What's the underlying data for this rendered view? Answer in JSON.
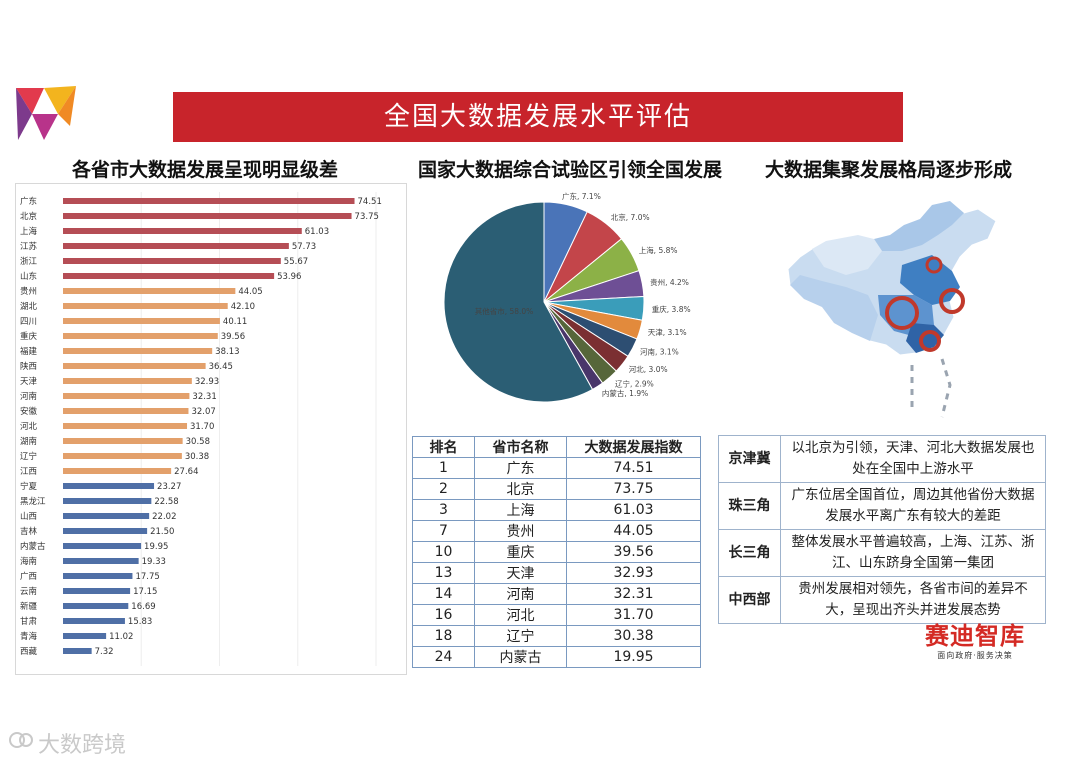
{
  "title": "全国大数据发展水平评估",
  "col_titles": {
    "left": "各省市大数据发展呈现明显级差",
    "mid": "国家大数据综合试验区引领全国发展",
    "right": "大数据集聚发展格局逐步形成"
  },
  "chart_data": [
    {
      "type": "bar",
      "orientation": "horizontal",
      "title": "各省市大数据发展呈现明显级差",
      "categories": [
        "广东",
        "北京",
        "上海",
        "江苏",
        "浙江",
        "山东",
        "贵州",
        "湖北",
        "四川",
        "重庆",
        "福建",
        "陕西",
        "天津",
        "河南",
        "安徽",
        "河北",
        "湖南",
        "辽宁",
        "江西",
        "宁夏",
        "黑龙江",
        "山西",
        "吉林",
        "内蒙古",
        "海南",
        "广西",
        "云南",
        "新疆",
        "甘肃",
        "青海",
        "西藏"
      ],
      "values": [
        74.51,
        73.75,
        61.03,
        57.73,
        55.67,
        53.96,
        44.05,
        42.1,
        40.11,
        39.56,
        38.13,
        36.45,
        32.93,
        32.31,
        32.07,
        31.7,
        30.58,
        30.38,
        27.64,
        23.27,
        22.58,
        22.02,
        21.5,
        19.95,
        19.33,
        17.75,
        17.15,
        16.69,
        15.83,
        11.02,
        7.32
      ],
      "value_labels": [
        "74.51",
        "73.75",
        "61.03",
        "57.73",
        "55.67",
        "53.96",
        "44.05",
        "42.10",
        "40.11",
        "39.56",
        "38.13",
        "36.45",
        "32.93",
        "32.31",
        "32.07",
        "31.70",
        "30.58",
        "30.38",
        "27.64",
        "23.27",
        "22.58",
        "22.02",
        "21.50",
        "19.95",
        "19.33",
        "17.75",
        "17.15",
        "16.69",
        "15.83",
        "11.02",
        "7.32"
      ],
      "tiers": [
        1,
        1,
        1,
        1,
        1,
        1,
        2,
        2,
        2,
        2,
        2,
        2,
        2,
        2,
        2,
        2,
        2,
        2,
        2,
        3,
        3,
        3,
        3,
        3,
        3,
        3,
        3,
        3,
        3,
        3,
        3
      ],
      "tier_colors": {
        "1": "#b54d55",
        "2": "#e3a06b",
        "3": "#4f6fa6"
      },
      "xlim": [
        0,
        80
      ]
    },
    {
      "type": "pie",
      "title": "国家大数据综合试验区引领全国发展",
      "labels": [
        "广东",
        "北京",
        "上海",
        "贵州",
        "重庆",
        "天津",
        "河南",
        "河北",
        "辽宁",
        "内蒙古",
        "其他省市"
      ],
      "values": [
        7.1,
        7.0,
        5.8,
        4.2,
        3.8,
        3.1,
        3.1,
        3.0,
        2.9,
        1.9,
        58.0
      ],
      "slice_labels": [
        "广东, 7.1%",
        "北京, 7.0%",
        "上海, 5.8%",
        "贵州, 4.2%",
        "重庆, 3.8%",
        "天津, 3.1%",
        "河南, 3.1%",
        "河北, 3.0%",
        "辽宁, 2.9%",
        "内蒙古, 1.9%",
        "其他省市, 58.0%"
      ],
      "colors": [
        "#4a74b8",
        "#c3454a",
        "#8cb147",
        "#6e4f95",
        "#3a9dba",
        "#e28a3c",
        "#2d4e72",
        "#7b2f32",
        "#56663a",
        "#49366a",
        "#2b5e74"
      ]
    }
  ],
  "rank_table": {
    "headers": [
      "排名",
      "省市名称",
      "大数据发展指数"
    ],
    "rows": [
      [
        "1",
        "广东",
        "74.51"
      ],
      [
        "2",
        "北京",
        "73.75"
      ],
      [
        "3",
        "上海",
        "61.03"
      ],
      [
        "7",
        "贵州",
        "44.05"
      ],
      [
        "10",
        "重庆",
        "39.56"
      ],
      [
        "13",
        "天津",
        "32.93"
      ],
      [
        "14",
        "河南",
        "32.31"
      ],
      [
        "16",
        "河北",
        "31.70"
      ],
      [
        "18",
        "辽宁",
        "30.38"
      ],
      [
        "24",
        "内蒙古",
        "19.95"
      ]
    ]
  },
  "regions": [
    {
      "name": "京津冀",
      "desc": "以北京为引领，天津、河北大数据发展也处在全国中上游水平"
    },
    {
      "name": "珠三角",
      "desc": "广东位居全国首位，周边其他省份大数据发展水平离广东有较大的差距"
    },
    {
      "name": "长三角",
      "desc": "整体发展水平普遍较高，上海、江苏、浙江、山东跻身全国第一集团"
    },
    {
      "name": "中西部",
      "desc": "贵州发展相对领先，各省市间的差异不大，呈现出齐头并进发展态势"
    }
  ],
  "brand": {
    "name": "赛迪智库",
    "tagline": "面向政府·服务决策"
  },
  "watermark": "大数跨境",
  "colors": {
    "banner": "#c8242b",
    "brand": "#d42a24"
  }
}
